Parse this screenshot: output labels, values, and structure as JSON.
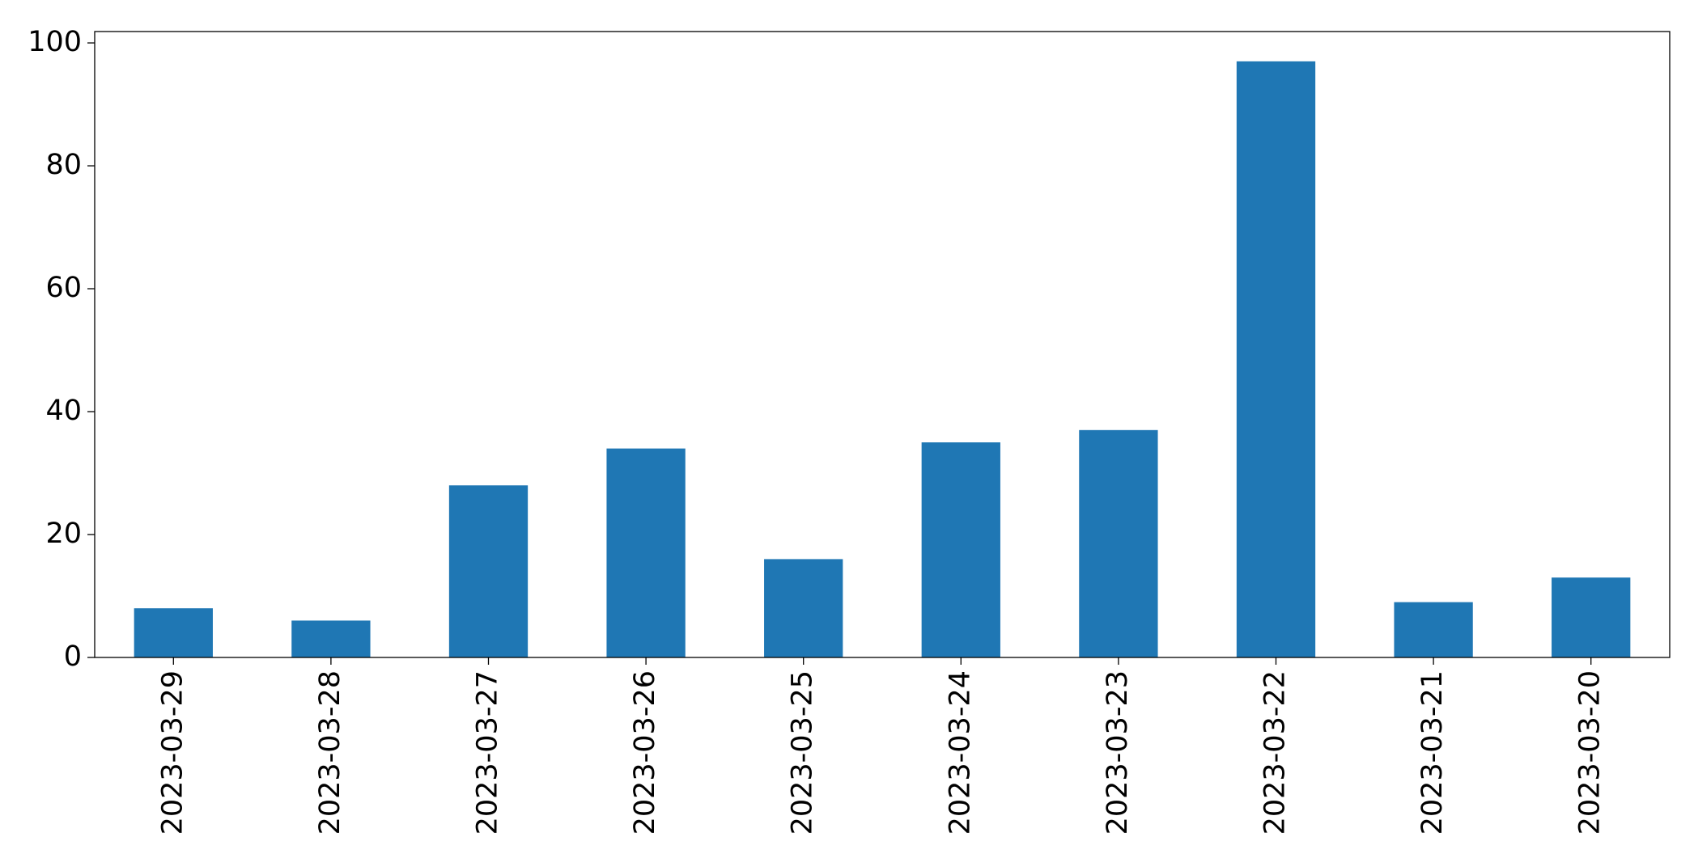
{
  "chart_data": {
    "type": "bar",
    "categories": [
      "2023-03-29",
      "2023-03-28",
      "2023-03-27",
      "2023-03-26",
      "2023-03-25",
      "2023-03-24",
      "2023-03-23",
      "2023-03-22",
      "2023-03-21",
      "2023-03-20"
    ],
    "values": [
      8,
      6,
      28,
      34,
      16,
      35,
      37,
      97,
      9,
      13
    ],
    "color": "#1f77b4",
    "ylim": [
      0,
      101.85
    ],
    "yticks": [
      0,
      20,
      40,
      60,
      80,
      100
    ],
    "grid": false
  }
}
